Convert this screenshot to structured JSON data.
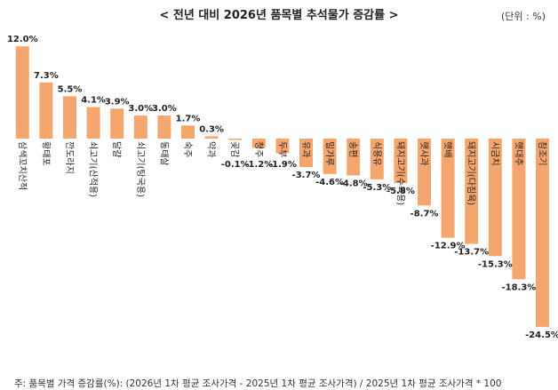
{
  "header": {
    "title": "< 전년 대비 2026년 품목별 추석물가 증감률 >",
    "unit": "(단위 : %)"
  },
  "footnote": "주: 품목별 가격 증감률(%): (2026년 1차 평균 조사가격 - 2025년 1차 평균 조사가격) / 2025년 1차 평균 조사가격 * 100",
  "chart_data": {
    "type": "bar",
    "title": "< 전년 대비 2026년 품목별 추석물가 증감률 >",
    "xlabel": "",
    "ylabel": "",
    "categories": [
      "삼색꼬치산적",
      "황태포",
      "깐도라지",
      "쇠고기(산적용)",
      "달걀",
      "쇠고기(탕국용)",
      "동태살",
      "숙주",
      "약과",
      "곶감",
      "청주",
      "두부",
      "유과",
      "밀가루",
      "송편",
      "식용유",
      "돼지고기(수육용)",
      "햇사과",
      "햇배",
      "돼지고기(다짐육)",
      "시금치",
      "햇대추",
      "참조기"
    ],
    "values": [
      12.0,
      7.3,
      5.5,
      4.1,
      3.9,
      3.0,
      3.0,
      1.7,
      0.3,
      -0.1,
      -1.2,
      -1.9,
      -3.7,
      -4.6,
      -4.8,
      -5.3,
      -5.8,
      -8.7,
      -12.9,
      -13.7,
      -15.3,
      -18.3,
      -24.5
    ],
    "value_labels": [
      "12.0%",
      "7.3%",
      "5.5%",
      "4.1%",
      "3.9%",
      "3.0%",
      "3.0%",
      "1.7%",
      "0.3%",
      "-0.1%",
      "-1.2%",
      "-1.9%",
      "-3.7%",
      "-4.6%",
      "-4.8%",
      "-5.3%",
      "-5.8%",
      "-8.7%",
      "-12.9%",
      "-13.7%",
      "-15.3%",
      "-18.3%",
      "-24.5%"
    ],
    "ylim": [
      -25,
      12.5
    ],
    "grid": false,
    "legend": "none",
    "bar_color": "#F5A66E"
  }
}
